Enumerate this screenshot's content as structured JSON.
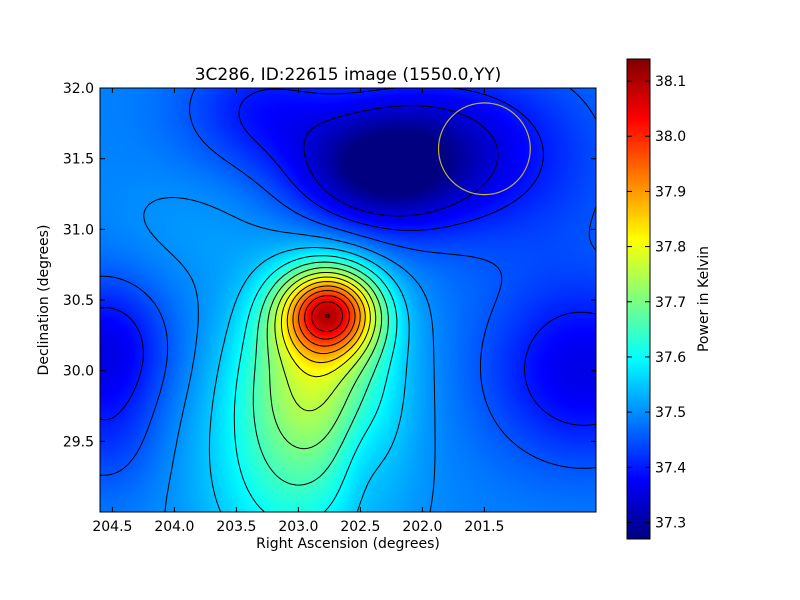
{
  "chart_data": {
    "type": "heatmap",
    "title": "3C286, ID:22615 image (1550.0,YY)",
    "xlabel": "Right Ascension (degrees)",
    "ylabel": "Declination (degrees)",
    "colorbar_label": "Power in Kelvin",
    "xlim": [
      204.6,
      200.6
    ],
    "ylim": [
      29.0,
      32.0
    ],
    "x_ticks": [
      {
        "value": 204.5,
        "label": "204.5"
      },
      {
        "value": 204.0,
        "label": "204.0"
      },
      {
        "value": 203.5,
        "label": "203.5"
      },
      {
        "value": 203.0,
        "label": "203.0"
      },
      {
        "value": 202.5,
        "label": "202.5"
      },
      {
        "value": 202.0,
        "label": "202.0"
      },
      {
        "value": 201.5,
        "label": "201.5"
      }
    ],
    "y_ticks": [
      {
        "value": 29.5,
        "label": "29.5"
      },
      {
        "value": 30.0,
        "label": "30.0"
      },
      {
        "value": 30.5,
        "label": "30.5"
      },
      {
        "value": 31.0,
        "label": "31.0"
      },
      {
        "value": 31.5,
        "label": "31.5"
      },
      {
        "value": 32.0,
        "label": "32.0"
      }
    ],
    "colorbar_range": [
      37.27,
      38.14
    ],
    "colorbar_ticks": [
      {
        "value": 37.3,
        "label": "37.3"
      },
      {
        "value": 37.4,
        "label": "37.4"
      },
      {
        "value": 37.5,
        "label": "37.5"
      },
      {
        "value": 37.6,
        "label": "37.6"
      },
      {
        "value": 37.7,
        "label": "37.7"
      },
      {
        "value": 37.8,
        "label": "37.8"
      },
      {
        "value": 37.9,
        "label": "37.9"
      },
      {
        "value": 38.0,
        "label": "38.0"
      },
      {
        "value": 38.1,
        "label": "38.1"
      }
    ],
    "colormap": "jet",
    "background_level": 37.49,
    "peak": {
      "ra": 202.75,
      "dec": 30.42,
      "value": 38.14
    },
    "features": [
      {
        "ra": 202.75,
        "dec": 30.42,
        "amplitude": 0.44,
        "sigma_ra": 0.27,
        "sigma_dec": 0.21
      },
      {
        "ra": 202.85,
        "dec": 30.05,
        "amplitude": 0.22,
        "sigma_ra": 0.42,
        "sigma_dec": 0.45
      },
      {
        "ra": 203.05,
        "dec": 29.3,
        "amplitude": 0.13,
        "sigma_ra": 0.5,
        "sigma_dec": 0.55
      },
      {
        "ra": 202.5,
        "dec": 29.4,
        "amplitude": -0.03,
        "sigma_ra": 0.15,
        "sigma_dec": 0.35
      },
      {
        "ra": 202.35,
        "dec": 31.4,
        "amplitude": -0.19,
        "sigma_ra": 0.5,
        "sigma_dec": 0.3
      },
      {
        "ra": 202.0,
        "dec": 31.65,
        "amplitude": -0.09,
        "sigma_ra": 0.55,
        "sigma_dec": 0.35
      },
      {
        "ra": 203.3,
        "dec": 31.85,
        "amplitude": -0.09,
        "sigma_ra": 0.45,
        "sigma_dec": 0.3
      },
      {
        "ra": 204.55,
        "dec": 30.15,
        "amplitude": -0.13,
        "sigma_ra": 0.35,
        "sigma_dec": 0.35
      },
      {
        "ra": 204.55,
        "dec": 29.5,
        "amplitude": -0.05,
        "sigma_ra": 0.3,
        "sigma_dec": 0.3
      },
      {
        "ra": 200.7,
        "dec": 30.0,
        "amplitude": -0.13,
        "sigma_ra": 0.55,
        "sigma_dec": 0.45
      },
      {
        "ra": 201.2,
        "dec": 31.5,
        "amplitude": -0.07,
        "sigma_ra": 0.6,
        "sigma_dec": 0.5
      },
      {
        "ra": 203.8,
        "dec": 31.0,
        "amplitude": 0.02,
        "sigma_ra": 0.5,
        "sigma_dec": 0.3
      }
    ],
    "contour_levels": [
      37.35,
      37.4,
      37.45,
      37.5,
      37.55,
      37.6,
      37.65,
      37.7,
      37.75,
      37.8,
      37.85,
      37.9,
      37.95,
      38.0,
      38.05,
      38.1
    ],
    "beam_circle": {
      "ra": 201.5,
      "dec": 31.57,
      "radius_deg": 0.37,
      "color": "#bfb040"
    },
    "grid": false
  }
}
